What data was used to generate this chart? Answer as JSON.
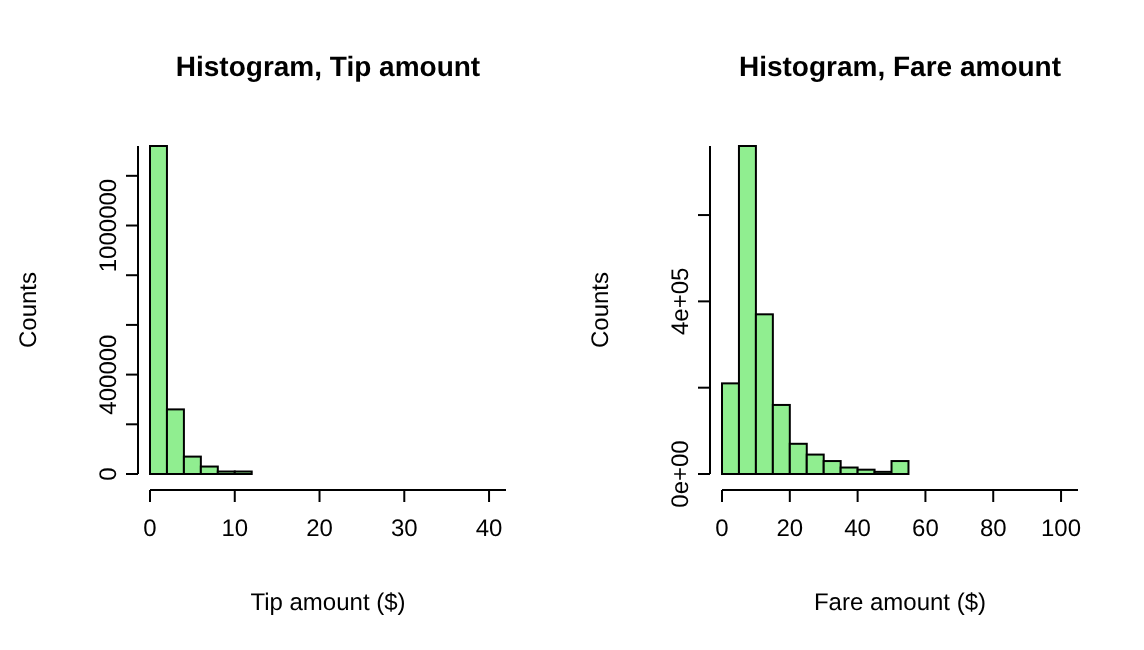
{
  "chart_data": [
    {
      "type": "histogram",
      "title": "Histogram, Tip amount",
      "xlabel": "Tip amount ($)",
      "ylabel": "Counts",
      "color": "#90ee90",
      "bins": [
        0,
        2,
        4,
        6,
        8,
        10,
        12,
        14,
        16,
        18,
        20,
        22,
        24,
        26,
        28,
        30,
        32,
        34,
        36,
        38,
        40,
        42
      ],
      "values": [
        1320000,
        260000,
        70000,
        30000,
        10000,
        10000,
        0,
        0,
        0,
        0,
        0,
        0,
        0,
        0,
        0,
        0,
        0,
        0,
        0,
        0,
        0
      ],
      "xlim": [
        0,
        42
      ],
      "xticks": [
        0,
        10,
        20,
        30,
        40
      ],
      "ylim": [
        0,
        1320000
      ],
      "yticks": [
        0,
        {
          "value": 200000,
          "label": null
        },
        400000,
        {
          "value": 600000,
          "label": null
        },
        {
          "value": 800000,
          "label": null
        },
        1000000,
        {
          "value": 1200000,
          "label": null
        }
      ]
    },
    {
      "type": "histogram",
      "title": "Histogram, Fare amount",
      "xlabel": "Fare amount ($)",
      "ylabel": "Counts",
      "color": "#90ee90",
      "bins": [
        0,
        5,
        10,
        15,
        20,
        25,
        30,
        35,
        40,
        45,
        50,
        55,
        60,
        65,
        70,
        75,
        80,
        85,
        90,
        95,
        100,
        105
      ],
      "values": [
        210000,
        760000,
        370000,
        160000,
        70000,
        45000,
        30000,
        15000,
        10000,
        5000,
        30000,
        0,
        0,
        0,
        0,
        0,
        0,
        0,
        0,
        0,
        0
      ],
      "xlim": [
        0,
        105
      ],
      "xticks": [
        0,
        20,
        40,
        60,
        80,
        100
      ],
      "ylim": [
        0,
        760000
      ],
      "yticks": [
        {
          "value": 0,
          "label": "0e+00"
        },
        {
          "value": 200000,
          "label": null
        },
        {
          "value": 400000,
          "label": "4e+05"
        },
        {
          "value": 600000,
          "label": null
        }
      ]
    }
  ]
}
